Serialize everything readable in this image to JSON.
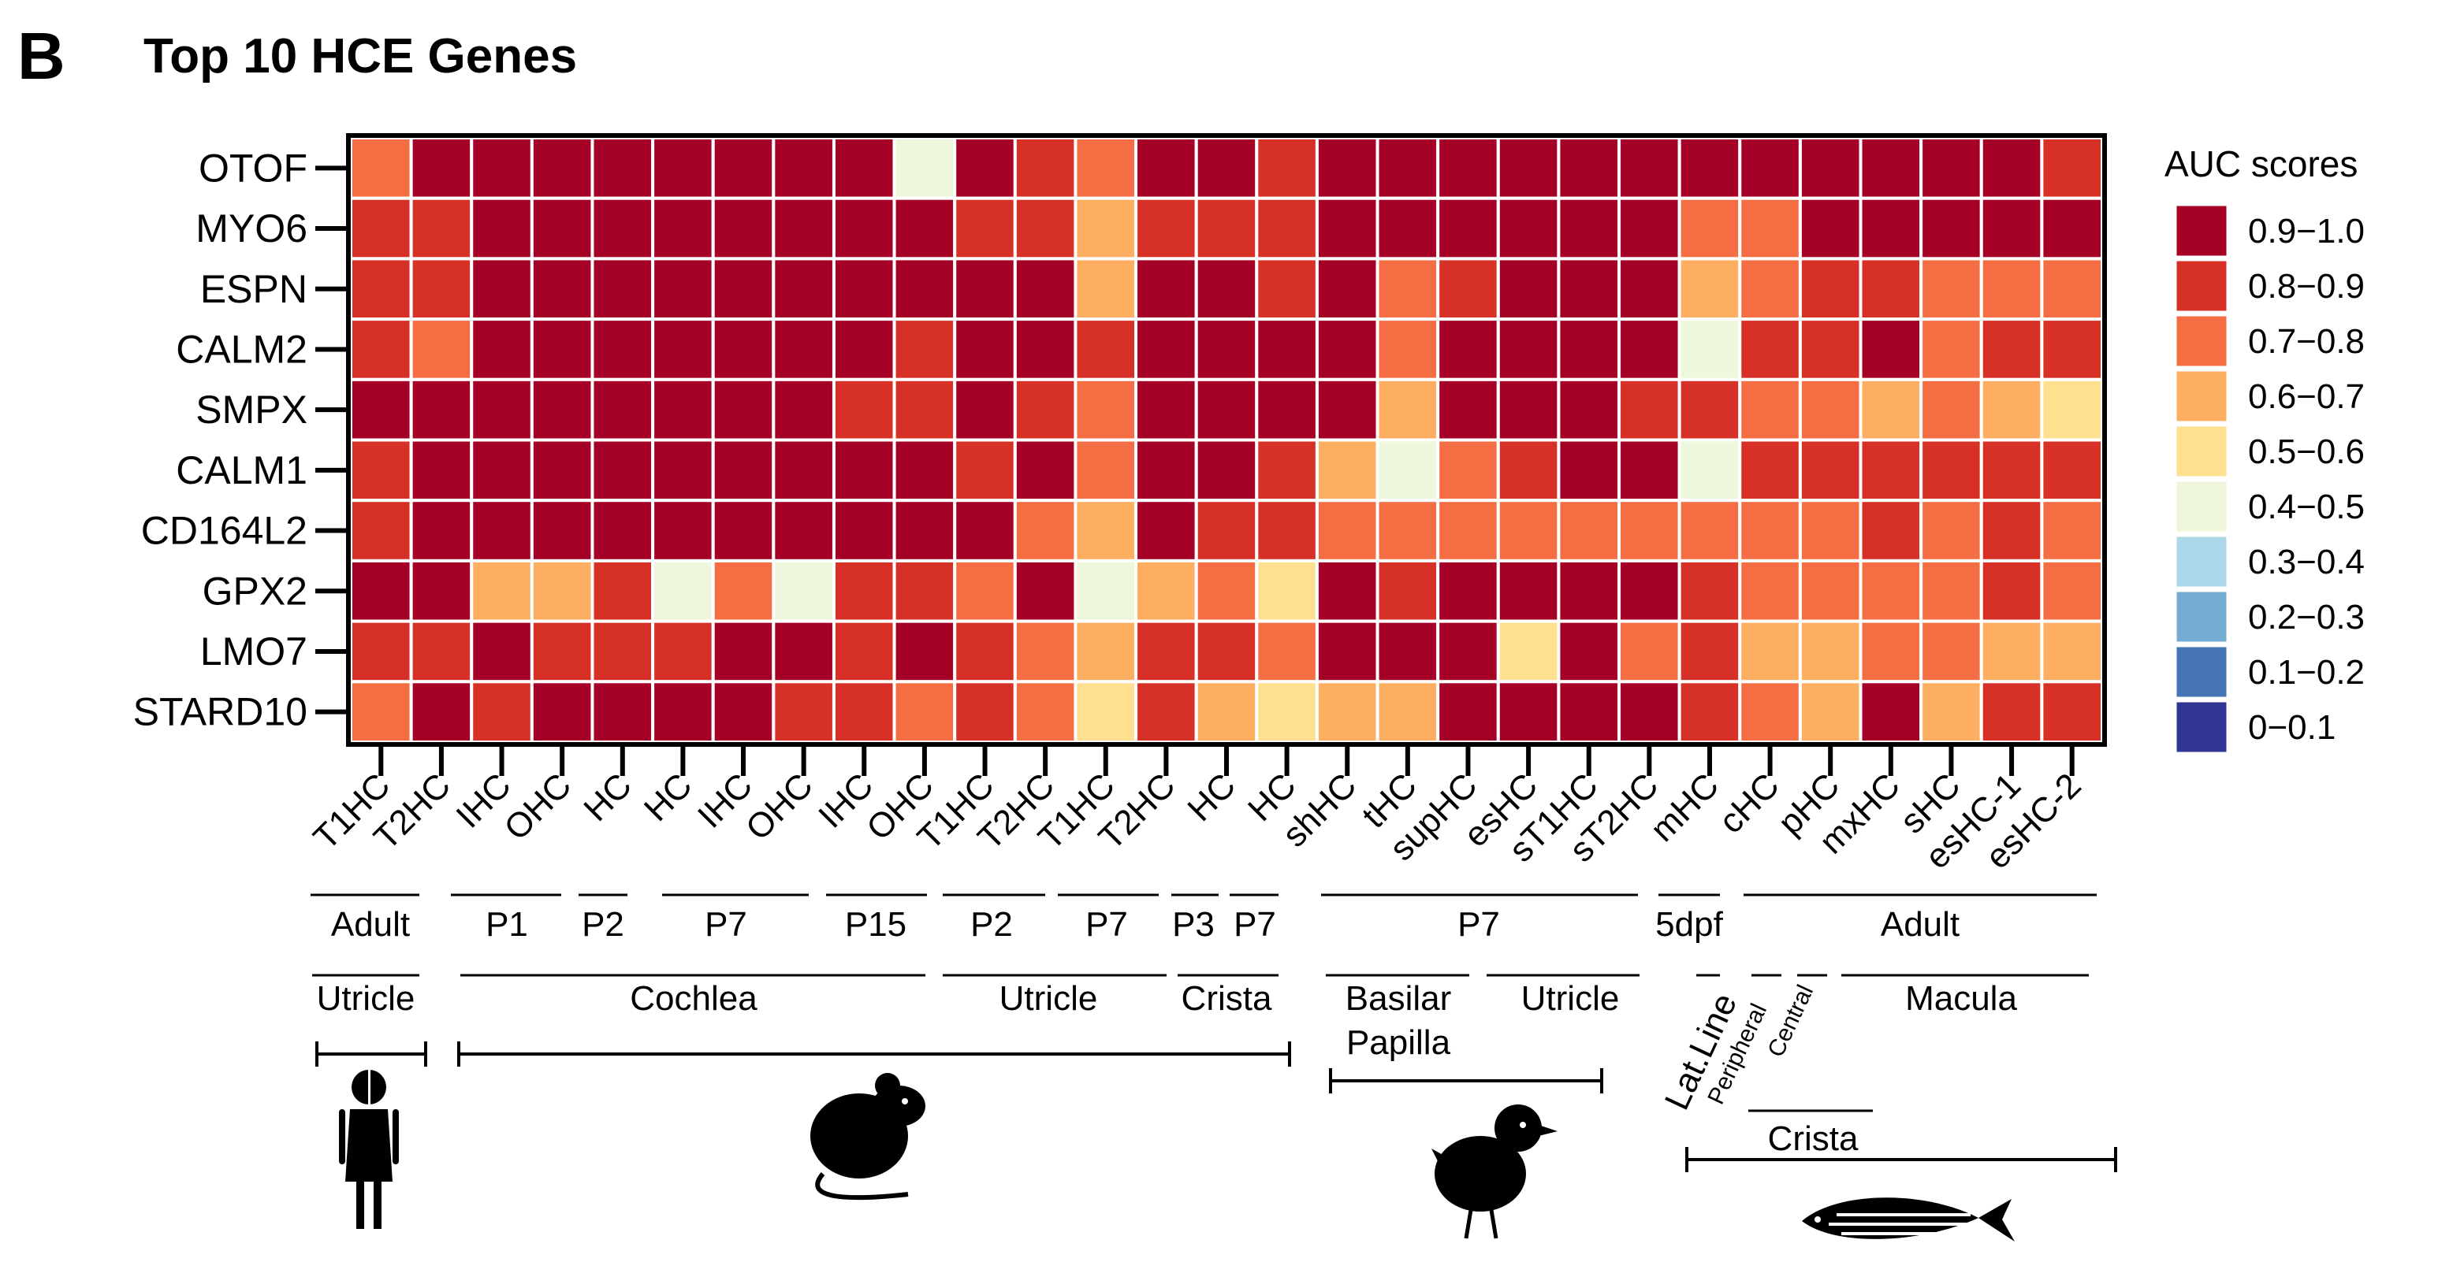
{
  "panel_label": "B",
  "chart_data": {
    "type": "heatmap",
    "title": "Top 10 HCE Genes",
    "rows": [
      "OTOF",
      "MYO6",
      "ESPN",
      "CALM2",
      "SMPX",
      "CALM1",
      "CD164L2",
      "GPX2",
      "LMO7",
      "STARD10"
    ],
    "columns": [
      "T1HC",
      "T2HC",
      "IHC",
      "OHC",
      "HC",
      "HC",
      "IHC",
      "OHC",
      "IHC",
      "OHC",
      "T1HC",
      "T2HC",
      "T1HC",
      "T2HC",
      "HC",
      "HC",
      "shHC",
      "tHC",
      "supHC",
      "esHC",
      "sT1HC",
      "sT2HC",
      "mHC",
      "cHC",
      "pHC",
      "mxHC",
      "sHC",
      "esHC-1",
      "esHC-2"
    ],
    "legend": {
      "title": "AUC scores",
      "bins": [
        {
          "label": "0.9−1.0",
          "color": "#a50026"
        },
        {
          "label": "0.8−0.9",
          "color": "#d73027"
        },
        {
          "label": "0.7−0.8",
          "color": "#f46d43"
        },
        {
          "label": "0.6−0.7",
          "color": "#fdae61"
        },
        {
          "label": "0.5−0.6",
          "color": "#fee090"
        },
        {
          "label": "0.4−0.5",
          "color": "#eef6dc"
        },
        {
          "label": "0.3−0.4",
          "color": "#abd9e9"
        },
        {
          "label": "0.2−0.3",
          "color": "#74add1"
        },
        {
          "label": "0.1−0.2",
          "color": "#4575b4"
        },
        {
          "label": "0−0.1",
          "color": "#313695"
        }
      ],
      "placement": "right"
    },
    "bin_index_note": "values are legend bin indices (0 = 0.9−1.0 ... 9 = 0−0.1)",
    "values": [
      [
        2,
        0,
        0,
        0,
        0,
        0,
        0,
        0,
        0,
        5,
        0,
        1,
        2,
        0,
        0,
        1,
        0,
        0,
        0,
        0,
        0,
        0,
        0,
        0,
        0,
        0,
        0,
        0,
        1
      ],
      [
        1,
        1,
        0,
        0,
        0,
        0,
        0,
        0,
        0,
        0,
        1,
        1,
        3,
        1,
        1,
        1,
        0,
        0,
        0,
        0,
        0,
        0,
        2,
        2,
        0,
        0,
        0,
        0,
        0
      ],
      [
        1,
        1,
        0,
        0,
        0,
        0,
        0,
        0,
        0,
        0,
        0,
        0,
        3,
        0,
        0,
        1,
        0,
        2,
        1,
        0,
        0,
        0,
        3,
        2,
        1,
        1,
        2,
        2,
        2
      ],
      [
        1,
        2,
        0,
        0,
        0,
        0,
        0,
        0,
        0,
        1,
        0,
        0,
        1,
        0,
        0,
        0,
        0,
        2,
        0,
        0,
        0,
        0,
        5,
        1,
        1,
        0,
        2,
        1,
        1
      ],
      [
        0,
        0,
        0,
        0,
        0,
        0,
        0,
        0,
        1,
        1,
        0,
        1,
        2,
        0,
        0,
        0,
        0,
        3,
        0,
        0,
        0,
        1,
        1,
        2,
        2,
        3,
        2,
        3,
        4
      ],
      [
        1,
        0,
        0,
        0,
        0,
        0,
        0,
        0,
        0,
        0,
        1,
        0,
        2,
        0,
        0,
        1,
        3,
        5,
        2,
        1,
        0,
        0,
        5,
        1,
        1,
        1,
        1,
        1,
        1
      ],
      [
        1,
        0,
        0,
        0,
        0,
        0,
        0,
        0,
        0,
        0,
        0,
        2,
        3,
        0,
        1,
        1,
        2,
        2,
        2,
        2,
        2,
        2,
        2,
        2,
        2,
        1,
        2,
        1,
        2
      ],
      [
        0,
        0,
        3,
        3,
        1,
        5,
        2,
        5,
        1,
        1,
        2,
        0,
        5,
        3,
        2,
        4,
        0,
        1,
        0,
        0,
        0,
        0,
        1,
        2,
        2,
        2,
        2,
        1,
        2
      ],
      [
        1,
        1,
        0,
        1,
        1,
        1,
        0,
        0,
        1,
        0,
        1,
        2,
        3,
        1,
        1,
        2,
        0,
        0,
        0,
        4,
        0,
        2,
        1,
        3,
        3,
        2,
        2,
        3,
        3
      ],
      [
        2,
        0,
        1,
        0,
        0,
        0,
        0,
        1,
        1,
        2,
        1,
        2,
        4,
        1,
        3,
        4,
        3,
        3,
        0,
        0,
        0,
        0,
        1,
        2,
        3,
        0,
        3,
        1,
        1
      ]
    ]
  },
  "annotations": {
    "stage_labels": [
      "Adult",
      "P1",
      "P2",
      "P7",
      "P15",
      "P2",
      "P7",
      "P3",
      "P7",
      "P7",
      "5dpf",
      "Adult"
    ],
    "organ_labels": [
      "Utricle",
      "Cochlea",
      "Utricle",
      "Crista",
      "Basilar",
      "Papilla",
      "Utricle",
      "Lat.Line",
      "Peripheral",
      "Central",
      "Macula",
      "Crista"
    ],
    "species_icons": [
      "human-icon",
      "mouse-icon",
      "chick-icon",
      "zebrafish-icon"
    ]
  }
}
